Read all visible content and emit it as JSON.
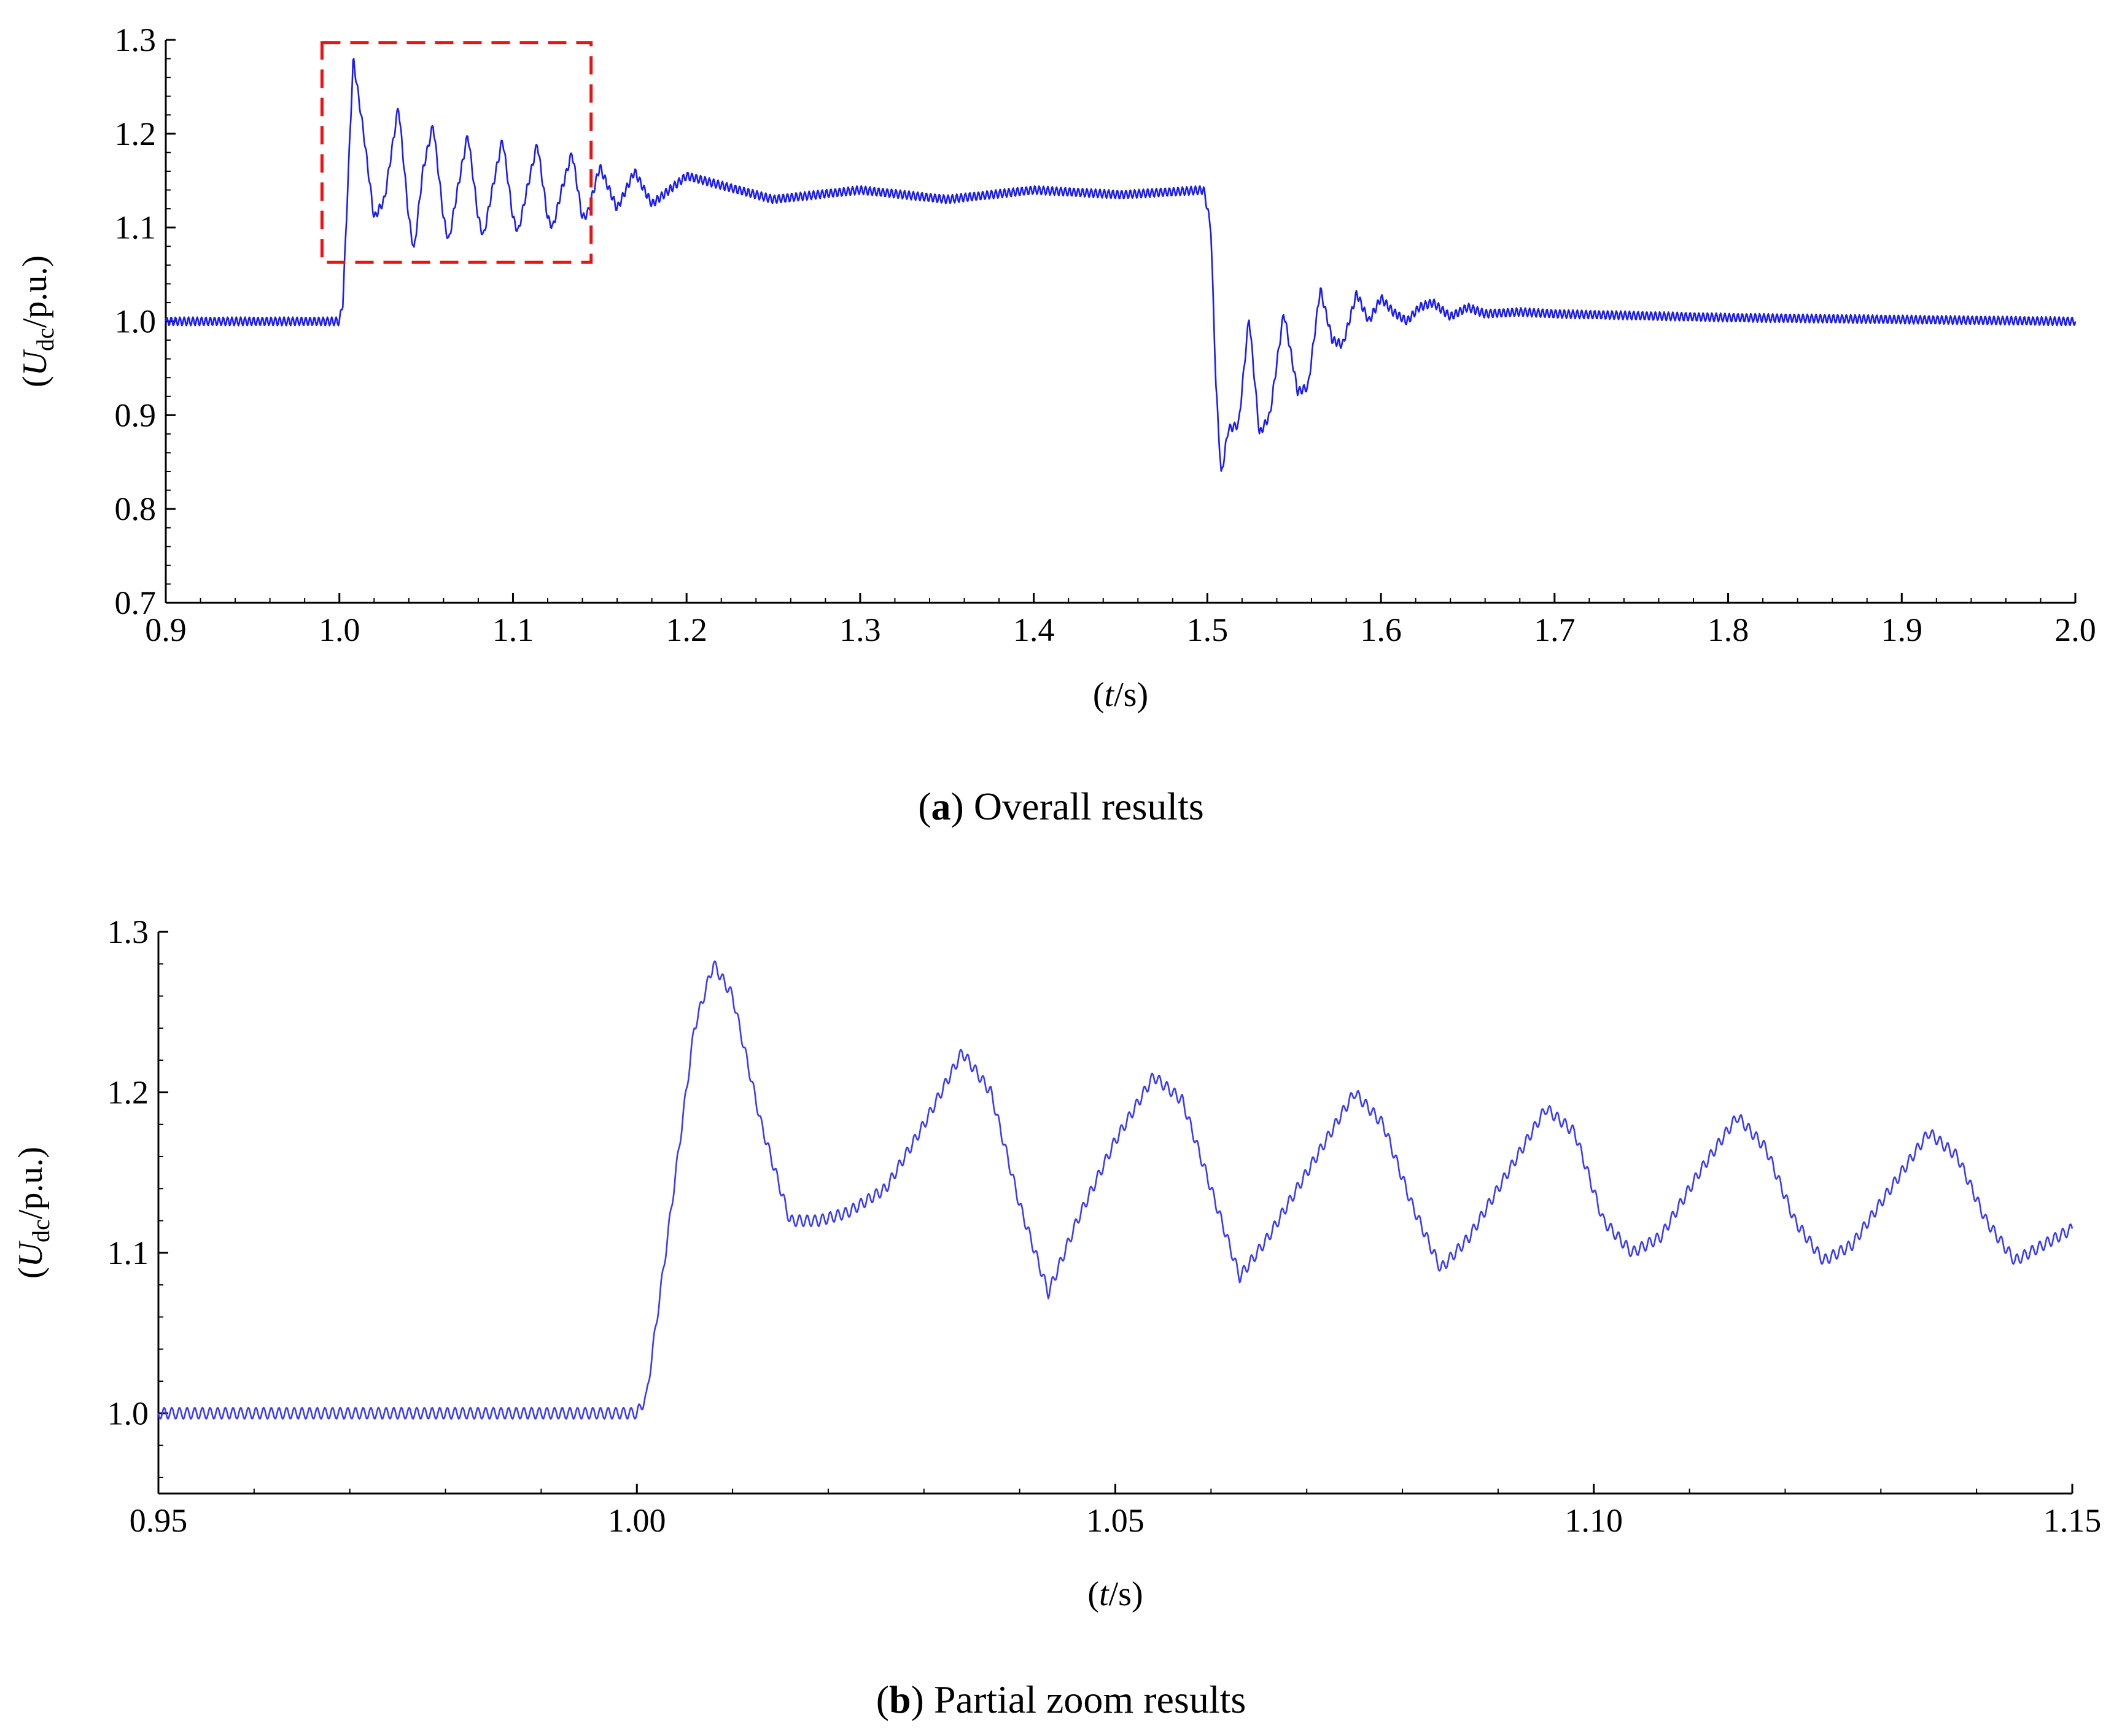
{
  "chart_data": [
    {
      "id": "a",
      "type": "line",
      "caption": {
        "letter": "a",
        "text": "Overall results"
      },
      "xlabel": {
        "pre": "(",
        "var": "t",
        "post": "/s)"
      },
      "ylabel": {
        "pre": "(",
        "var": "U",
        "sub": "dc",
        "post": "/p.u.)"
      },
      "xlim": [
        0.9,
        2.0
      ],
      "ylim": [
        0.7,
        1.3
      ],
      "x_ticks": [
        "0.9",
        "1.0",
        "1.1",
        "1.2",
        "1.3",
        "1.4",
        "1.5",
        "1.6",
        "1.7",
        "1.8",
        "1.9",
        "2.0"
      ],
      "y_ticks": [
        "0.7",
        "0.8",
        "0.9",
        "1.0",
        "1.1",
        "1.2",
        "1.3"
      ],
      "grid": false,
      "line_color": "#1a1aff",
      "series": [
        {
          "x": [
            0.9,
            1.0,
            1.002,
            1.008,
            1.014,
            1.02,
            1.026,
            1.034,
            1.04,
            1.043,
            1.048,
            1.054,
            1.06,
            1.063,
            1.068,
            1.074,
            1.08,
            1.083,
            1.088,
            1.094,
            1.1,
            1.103,
            1.108,
            1.114,
            1.12,
            1.123,
            1.128,
            1.134,
            1.14,
            1.143,
            1.15,
            1.16,
            1.17,
            1.18,
            1.2,
            1.25,
            1.3,
            1.35,
            1.4,
            1.45,
            1.498,
            1.502,
            1.505,
            1.508,
            1.512,
            1.518,
            1.524,
            1.53,
            1.536,
            1.544,
            1.552,
            1.558,
            1.565,
            1.572,
            1.578,
            1.586,
            1.593,
            1.6,
            1.607,
            1.615,
            1.622,
            1.63,
            1.64,
            1.65,
            1.66,
            1.68,
            1.7,
            1.75,
            1.8,
            1.9,
            2.0
          ],
          "y": [
            1.0,
            1.0,
            1.02,
            1.28,
            1.2,
            1.11,
            1.13,
            1.23,
            1.11,
            1.075,
            1.16,
            1.21,
            1.11,
            1.085,
            1.14,
            1.2,
            1.11,
            1.09,
            1.14,
            1.195,
            1.11,
            1.095,
            1.14,
            1.19,
            1.11,
            1.1,
            1.14,
            1.18,
            1.11,
            1.115,
            1.165,
            1.12,
            1.16,
            1.125,
            1.155,
            1.13,
            1.14,
            1.13,
            1.14,
            1.135,
            1.14,
            1.1,
            0.93,
            0.835,
            0.885,
            0.89,
            1.005,
            0.88,
            0.9,
            1.01,
            0.925,
            0.93,
            1.035,
            0.98,
            0.975,
            1.03,
            1.0,
            1.025,
            1.01,
            1.0,
            1.015,
            1.02,
            1.005,
            1.015,
            1.008,
            1.01,
            1.008,
            1.006,
            1.004,
            1.002,
            1.0
          ]
        }
      ],
      "annotation": {
        "type": "dashed-box",
        "color": "#ee1111",
        "x": [
          0.99,
          1.145
        ],
        "y": [
          1.063,
          1.297
        ]
      }
    },
    {
      "id": "b",
      "type": "line",
      "caption": {
        "letter": "b",
        "text": "Partial zoom results"
      },
      "xlabel": {
        "pre": "(",
        "var": "t",
        "post": "/s)"
      },
      "ylabel": {
        "pre": "(",
        "var": "U",
        "sub": "dc",
        "post": "/p.u.)"
      },
      "xlim": [
        0.95,
        1.15
      ],
      "ylim": [
        0.95,
        1.3
      ],
      "x_ticks": [
        "0.95",
        "1.00",
        "1.05",
        "1.10",
        "1.15"
      ],
      "y_ticks": [
        "1.0",
        "1.1",
        "1.2",
        "1.3"
      ],
      "grid": false,
      "line_color": "#3a3aff",
      "series": [
        {
          "x": [
            0.95,
            1.0,
            1.001,
            1.003,
            1.006,
            1.008,
            1.01,
            1.013,
            1.016,
            1.019,
            1.022,
            1.026,
            1.03,
            1.034,
            1.037,
            1.04,
            1.043,
            1.046,
            1.05,
            1.054,
            1.057,
            1.06,
            1.063,
            1.066,
            1.07,
            1.075,
            1.078,
            1.081,
            1.084,
            1.087,
            1.091,
            1.095,
            1.098,
            1.101,
            1.104,
            1.107,
            1.111,
            1.115,
            1.118,
            1.121,
            1.124,
            1.127,
            1.131,
            1.135,
            1.138,
            1.141,
            1.144,
            1.147,
            1.15
          ],
          "y": [
            1.0,
            1.0,
            1.01,
            1.1,
            1.24,
            1.28,
            1.26,
            1.18,
            1.12,
            1.12,
            1.125,
            1.14,
            1.18,
            1.225,
            1.2,
            1.13,
            1.075,
            1.12,
            1.17,
            1.21,
            1.195,
            1.14,
            1.085,
            1.11,
            1.15,
            1.2,
            1.18,
            1.13,
            1.09,
            1.11,
            1.15,
            1.19,
            1.175,
            1.12,
            1.1,
            1.11,
            1.15,
            1.185,
            1.165,
            1.12,
            1.095,
            1.105,
            1.14,
            1.175,
            1.16,
            1.12,
            1.095,
            1.105,
            1.115
          ]
        }
      ]
    }
  ]
}
